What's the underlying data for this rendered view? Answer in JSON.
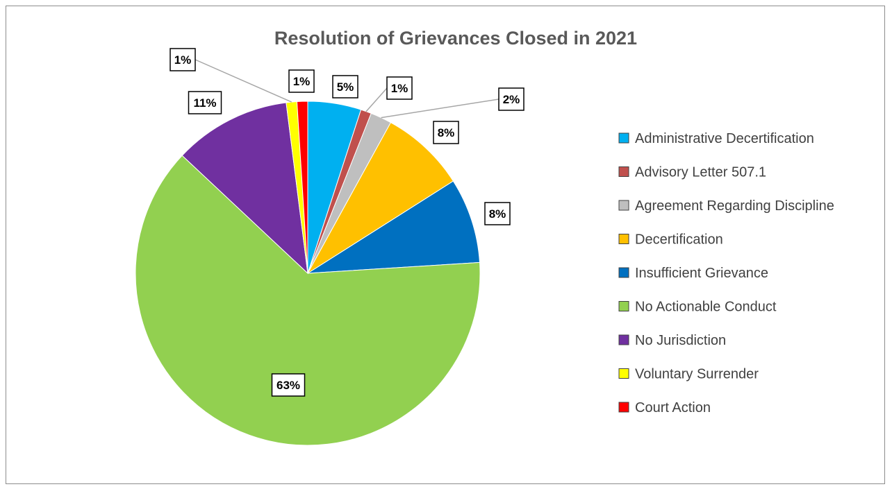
{
  "chart_data": {
    "type": "pie",
    "title": "Resolution of Grievances Closed in 2021",
    "legend_position": "right",
    "slices": [
      {
        "label": "Administrative Decertification",
        "value": 5,
        "display": "5%",
        "color": "#00b0f0"
      },
      {
        "label": "Advisory Letter 507.1",
        "value": 1,
        "display": "1%",
        "color": "#c0504d"
      },
      {
        "label": "Agreement Regarding Discipline",
        "value": 2,
        "display": "2%",
        "color": "#bfbfbf"
      },
      {
        "label": "Decertification",
        "value": 8,
        "display": "8%",
        "color": "#ffc000"
      },
      {
        "label": "Insufficient Grievance",
        "value": 8,
        "display": "8%",
        "color": "#0070c0"
      },
      {
        "label": "No Actionable Conduct",
        "value": 63,
        "display": "63%",
        "color": "#92d050"
      },
      {
        "label": "No Jurisdiction",
        "value": 11,
        "display": "11%",
        "color": "#7030a0"
      },
      {
        "label": "Voluntary Surrender",
        "value": 1,
        "display": "1%",
        "color": "#ffff00"
      },
      {
        "label": "Court Action",
        "value": 1,
        "display": "1%",
        "color": "#ff0000"
      }
    ]
  }
}
